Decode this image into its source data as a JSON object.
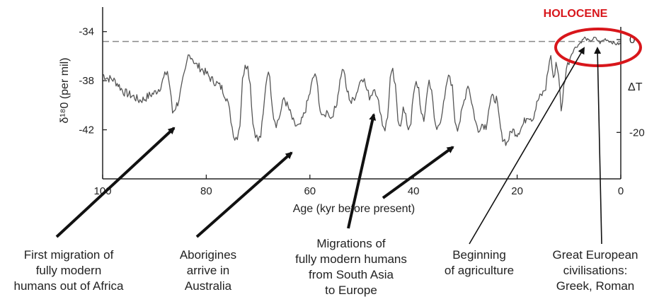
{
  "chart_data": {
    "type": "line",
    "title": "",
    "xlabel": "Age (kyr before present)",
    "ylabel_left": "δ¹⁸0 (per mil)",
    "ylabel_right": "ΔT",
    "x_reversed": true,
    "xlim": [
      100,
      0
    ],
    "ylim_left": [
      -46,
      -32
    ],
    "ylim_right": [
      -30,
      7
    ],
    "x_ticks": [
      100,
      80,
      60,
      40,
      20,
      0
    ],
    "x_tick_labels": [
      "100",
      "80",
      "60",
      "40",
      "20",
      "0"
    ],
    "y_left_ticks": [
      -34,
      -38,
      -42
    ],
    "y_left_tick_labels": [
      "-34",
      "-38",
      "-42"
    ],
    "y_right_ticks": [
      0,
      -20
    ],
    "y_right_tick_labels": [
      "0",
      "-20"
    ],
    "reference_line_y": -34.8,
    "grid": false,
    "series": [
      {
        "values": [
          [
            100,
            -37.5
          ],
          [
            99,
            -37.8
          ],
          [
            98,
            -37.9
          ],
          [
            97,
            -38.3
          ],
          [
            96,
            -38.9
          ],
          [
            95,
            -39.1
          ],
          [
            94,
            -39.3
          ],
          [
            93,
            -39.6
          ],
          [
            92,
            -39.5
          ],
          [
            91,
            -39.2
          ],
          [
            90,
            -39.0
          ],
          [
            89,
            -38.6
          ],
          [
            88,
            -37.6
          ],
          [
            87.5,
            -37.2
          ],
          [
            87,
            -38.6
          ],
          [
            86.5,
            -40.6
          ],
          [
            85.5,
            -39.8
          ],
          [
            85,
            -39.0
          ],
          [
            84.5,
            -38.0
          ],
          [
            84,
            -37.2
          ],
          [
            83.5,
            -36.0
          ],
          [
            83,
            -35.9
          ],
          [
            82,
            -36.7
          ],
          [
            81,
            -37.0
          ],
          [
            80,
            -37.4
          ],
          [
            79,
            -37.9
          ],
          [
            78,
            -38.2
          ],
          [
            77,
            -38.6
          ],
          [
            76,
            -39.5
          ],
          [
            75.5,
            -40.5
          ],
          [
            75,
            -41.8
          ],
          [
            74.5,
            -42.7
          ],
          [
            74,
            -42.5
          ],
          [
            73.5,
            -41.5
          ],
          [
            73,
            -38.0
          ],
          [
            72.5,
            -36.5
          ],
          [
            72,
            -36.9
          ],
          [
            71.5,
            -38.2
          ],
          [
            71,
            -41.5
          ],
          [
            70.5,
            -42.3
          ],
          [
            70,
            -42.9
          ],
          [
            69.5,
            -42.5
          ],
          [
            69,
            -40.8
          ],
          [
            68.5,
            -38.2
          ],
          [
            68,
            -37.0
          ],
          [
            67.5,
            -38.9
          ],
          [
            67,
            -40.9
          ],
          [
            66.5,
            -41.5
          ],
          [
            66,
            -41.1
          ],
          [
            65.5,
            -40.3
          ],
          [
            65,
            -39.4
          ],
          [
            64,
            -40.4
          ],
          [
            63,
            -41.6
          ],
          [
            62,
            -41.8
          ],
          [
            61,
            -40.6
          ],
          [
            60,
            -39.0
          ],
          [
            59.5,
            -38.0
          ],
          [
            59,
            -37.4
          ],
          [
            58.5,
            -38.6
          ],
          [
            58,
            -40.4
          ],
          [
            57.5,
            -41.1
          ],
          [
            57,
            -40.7
          ],
          [
            56.5,
            -40.4
          ],
          [
            56,
            -41.1
          ],
          [
            55.5,
            -40.6
          ],
          [
            55,
            -40.2
          ],
          [
            54,
            -37.5
          ],
          [
            53.5,
            -37.0
          ],
          [
            53,
            -38.6
          ],
          [
            52,
            -39.8
          ],
          [
            51,
            -39.0
          ],
          [
            50,
            -37.6
          ],
          [
            49.5,
            -38.0
          ],
          [
            49,
            -38.8
          ],
          [
            48.5,
            -39.3
          ],
          [
            48,
            -39.0
          ],
          [
            47.5,
            -38.4
          ],
          [
            47,
            -39.5
          ],
          [
            46.5,
            -40.2
          ],
          [
            46,
            -41.5
          ],
          [
            45.5,
            -41.9
          ],
          [
            45,
            -41.0
          ],
          [
            44.5,
            -37.8
          ],
          [
            44,
            -37.3
          ],
          [
            43.5,
            -38.6
          ],
          [
            43,
            -41.2
          ],
          [
            42.5,
            -41.5
          ],
          [
            42,
            -40.3
          ],
          [
            41.5,
            -41.0
          ],
          [
            41,
            -41.9
          ],
          [
            40.5,
            -41.3
          ],
          [
            40,
            -39.2
          ],
          [
            39.5,
            -38.2
          ],
          [
            39,
            -38.6
          ],
          [
            38.5,
            -40.8
          ],
          [
            38,
            -41.4
          ],
          [
            37.5,
            -39.3
          ],
          [
            37,
            -38.0
          ],
          [
            36.5,
            -38.7
          ],
          [
            36,
            -41.2
          ],
          [
            35.5,
            -42.0
          ],
          [
            35,
            -41.5
          ],
          [
            34,
            -39.6
          ],
          [
            33.5,
            -38.0
          ],
          [
            33,
            -37.6
          ],
          [
            32.5,
            -38.6
          ],
          [
            32,
            -41.2
          ],
          [
            31.5,
            -41.8
          ],
          [
            31,
            -41.2
          ],
          [
            30,
            -39.2
          ],
          [
            29.5,
            -38.2
          ],
          [
            29,
            -39.2
          ],
          [
            28,
            -41.4
          ],
          [
            27.5,
            -42.2
          ],
          [
            27,
            -41.5
          ],
          [
            26,
            -41.7
          ],
          [
            25.5,
            -40.3
          ],
          [
            25,
            -39.4
          ],
          [
            24,
            -39.5
          ],
          [
            23,
            -42.5
          ],
          [
            22,
            -43.1
          ],
          [
            21,
            -42.0
          ],
          [
            20,
            -42.3
          ],
          [
            19,
            -41.7
          ],
          [
            18,
            -40.8
          ],
          [
            17,
            -41.1
          ],
          [
            16,
            -39.6
          ],
          [
            15,
            -39.0
          ],
          [
            14.5,
            -38.6
          ],
          [
            14,
            -37.0
          ],
          [
            13.5,
            -35.9
          ],
          [
            13,
            -38.0
          ],
          [
            12.5,
            -36.5
          ],
          [
            12,
            -37.4
          ],
          [
            11.5,
            -40.6
          ],
          [
            11,
            -38.5
          ],
          [
            10.5,
            -37.0
          ],
          [
            10,
            -36.4
          ],
          [
            9.5,
            -35.8
          ],
          [
            9,
            -35.4
          ],
          [
            8,
            -35.0
          ],
          [
            7,
            -34.5
          ],
          [
            6,
            -34.8
          ],
          [
            5,
            -34.5
          ],
          [
            4,
            -34.9
          ],
          [
            3,
            -34.6
          ],
          [
            2,
            -34.8
          ],
          [
            1,
            -35.0
          ],
          [
            0,
            -35.0
          ]
        ]
      }
    ],
    "annotations": [
      {
        "label": "HOLOCENE",
        "lines": [
          "HOLOCENE"
        ],
        "color": "#d8161b"
      },
      {
        "label": "First migration of fully modern humans out of Africa",
        "lines": [
          "First migration of",
          "fully modern",
          "humans out of Africa"
        ],
        "target_x": 87
      },
      {
        "label": "Aborigines arrive in Australia",
        "lines": [
          "Aborigines",
          "arrive in",
          "Australia"
        ],
        "target_x": 63
      },
      {
        "label": "Migrations of fully modern humans from South Asia to Europe",
        "lines": [
          "Migrations of",
          "fully modern humans",
          "from South Asia",
          "to Europe"
        ],
        "target_x": [
          49,
          32
        ]
      },
      {
        "label": "Beginning of agriculture",
        "lines": [
          "Beginning",
          "of agriculture"
        ],
        "target_x": 7
      },
      {
        "label": "Great European civilisations: Greek, Roman",
        "lines": [
          "Great European",
          "civilisations:",
          "Greek, Roman"
        ],
        "target_x": 2
      }
    ]
  },
  "colors": {
    "line": "#555555",
    "axis": "#222222",
    "reference_line": "#888888",
    "highlight": "#d8161b",
    "text": "#222222"
  }
}
